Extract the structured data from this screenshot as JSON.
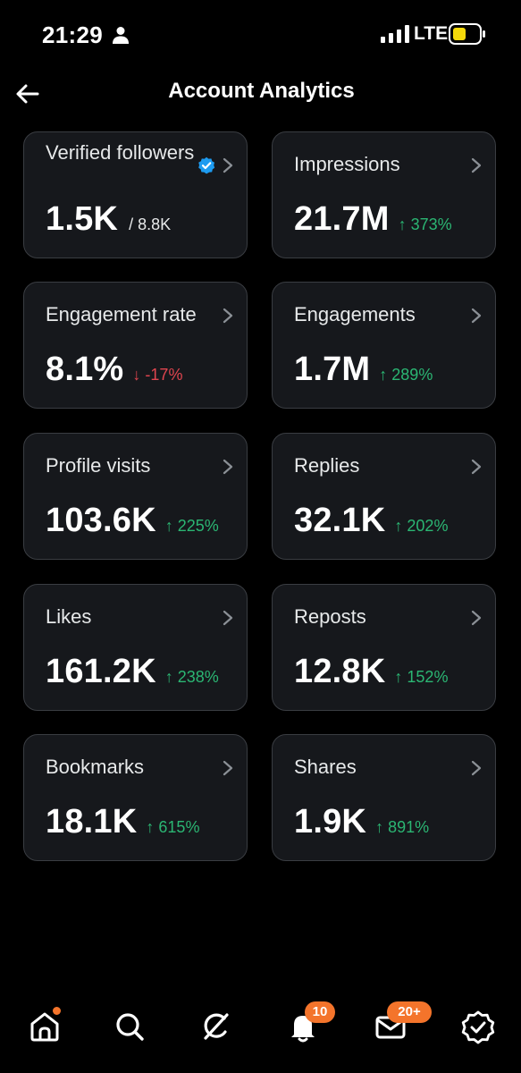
{
  "status_bar": {
    "time": "21:29",
    "network": "LTE",
    "battery_color": "#f5d90a"
  },
  "header": {
    "title": "Account Analytics"
  },
  "cards": [
    {
      "label": "Verified followers",
      "value": "1.5K",
      "sub": "/ 8.8K",
      "verified": true
    },
    {
      "label": "Impressions",
      "value": "21.7M",
      "delta": "↑ 373%",
      "trend": "up"
    },
    {
      "label": "Engagement rate",
      "value": "8.1%",
      "delta": "↓ -17%",
      "trend": "down"
    },
    {
      "label": "Engagements",
      "value": "1.7M",
      "delta": "↑ 289%",
      "trend": "up"
    },
    {
      "label": "Profile visits",
      "value": "103.6K",
      "delta": "↑ 225%",
      "trend": "up"
    },
    {
      "label": "Replies",
      "value": "32.1K",
      "delta": "↑ 202%",
      "trend": "up"
    },
    {
      "label": "Likes",
      "value": "161.2K",
      "delta": "↑ 238%",
      "trend": "up"
    },
    {
      "label": "Reposts",
      "value": "12.8K",
      "delta": "↑ 152%",
      "trend": "up"
    },
    {
      "label": "Bookmarks",
      "value": "18.1K",
      "delta": "↑ 615%",
      "trend": "up"
    },
    {
      "label": "Shares",
      "value": "1.9K",
      "delta": "↑ 891%",
      "trend": "up"
    }
  ],
  "colors": {
    "up": "#2bb673",
    "down": "#e0454f",
    "verified": "#1d9bf0",
    "badge": "#f4742b"
  },
  "bottom_nav": {
    "items": [
      {
        "icon": "home-icon"
      },
      {
        "icon": "search-icon"
      },
      {
        "icon": "grok-icon"
      },
      {
        "icon": "notifications-icon",
        "badge": "10"
      },
      {
        "icon": "messages-icon",
        "badge": "20+"
      },
      {
        "icon": "verified-orgs-icon"
      }
    ]
  }
}
